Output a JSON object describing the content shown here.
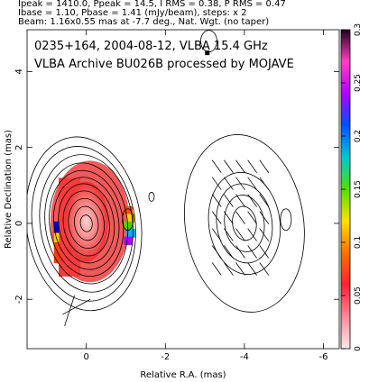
{
  "header": {
    "line1": "Ipeak = 1410.0, Ppeak = 14.5, I RMS = 0.38, P RMS = 0.47",
    "line2": "Ibase = 1.10, Pbase = 1.41 (mJy/beam), steps: x 2",
    "line3": "Beam: 1.16x0.55 mas at -7.7 deg., Nat. Wgt. (no taper)"
  },
  "chart_data": {
    "type": "heatmap",
    "title": "0235+164, 2004-08-12, VLBA 15.4 GHz",
    "subtitle": "VLBA Archive BU026B processed by MOJAVE",
    "xlabel": "Relative R.A. (mas)",
    "ylabel": "Relative Declination (mas)",
    "xlim": [
      1.5,
      -6.4
    ],
    "ylim": [
      -3.3,
      5.1
    ],
    "x_ticks": [
      0,
      -2,
      -4,
      -6
    ],
    "y_ticks": [
      -2,
      0,
      2,
      4
    ],
    "colorbar": {
      "range": [
        0,
        0.3
      ],
      "ticks": [
        "0",
        "0.05",
        "0.1",
        "0.15",
        "0.2",
        "0.25",
        "0.3"
      ]
    },
    "left_panel": {
      "center": [
        0,
        0
      ],
      "contours_mas": [
        [
          0.15,
          0.22
        ],
        [
          0.3,
          0.45
        ],
        [
          0.45,
          0.66
        ],
        [
          0.58,
          0.86
        ],
        [
          0.7,
          1.05
        ],
        [
          0.82,
          1.22
        ],
        [
          0.93,
          1.4
        ],
        [
          1.04,
          1.6
        ],
        [
          1.17,
          1.82
        ],
        [
          1.3,
          2.05
        ],
        [
          1.45,
          2.3
        ]
      ]
    },
    "right_panel": {
      "center": [
        -4,
        0
      ],
      "contours_mas": [
        [
          0.3,
          0.45
        ],
        [
          0.5,
          0.75
        ],
        [
          0.7,
          1.05
        ],
        [
          0.9,
          1.35
        ],
        [
          1.5,
          2.35
        ]
      ]
    }
  }
}
